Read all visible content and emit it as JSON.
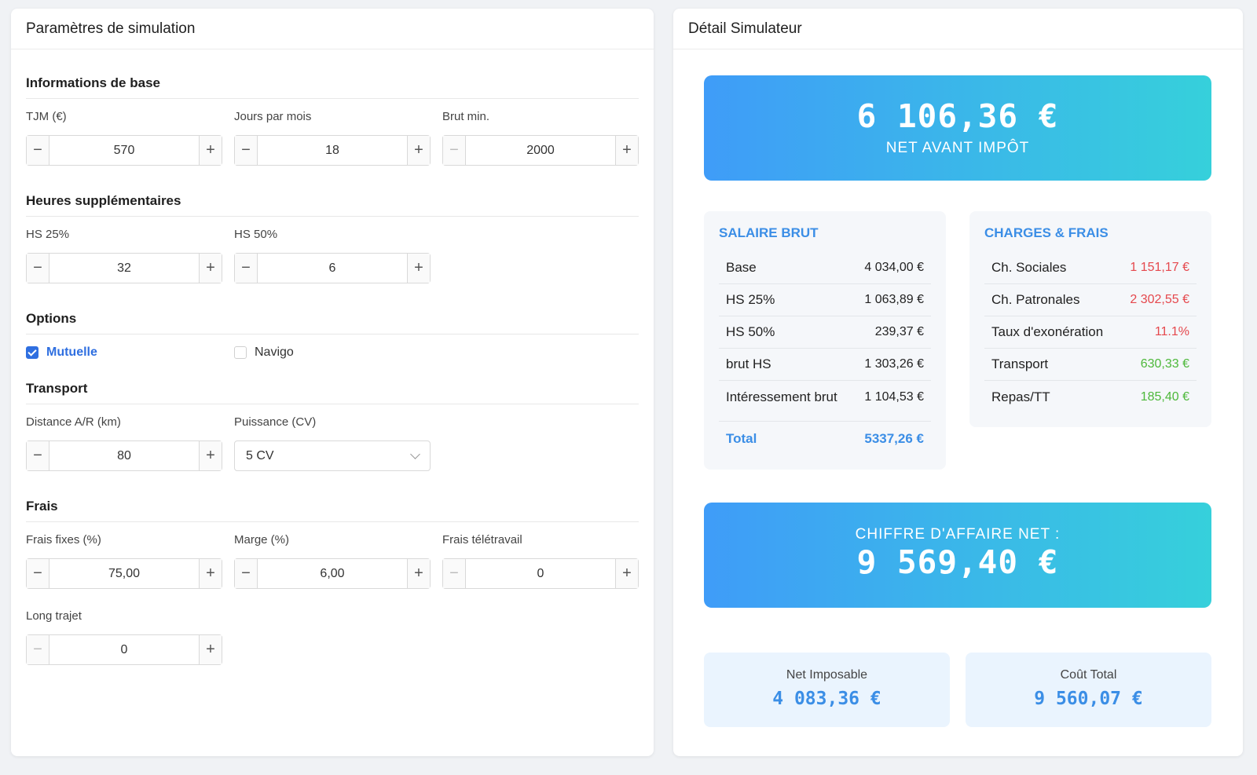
{
  "left": {
    "title": "Paramètres de simulation",
    "base": {
      "title": "Informations de base",
      "fields": [
        {
          "label": "TJM (€)",
          "value": "570"
        },
        {
          "label": "Jours par mois",
          "value": "18"
        },
        {
          "label": "Brut min.",
          "value": "2000"
        }
      ]
    },
    "hs": {
      "title": "Heures supplémentaires",
      "fields": [
        {
          "label": "HS 25%",
          "value": "32"
        },
        {
          "label": "HS 50%",
          "value": "6"
        }
      ]
    },
    "options": {
      "title": "Options",
      "items": [
        {
          "label": "Mutuelle",
          "checked": true
        },
        {
          "label": "Navigo",
          "checked": false
        }
      ]
    },
    "transport": {
      "title": "Transport",
      "distance_label": "Distance A/R (km)",
      "distance_value": "80",
      "puissance_label": "Puissance (CV)",
      "puissance_value": "5 CV"
    },
    "frais": {
      "title": "Frais",
      "fields": [
        {
          "label": "Frais fixes (%)",
          "value": "75,00"
        },
        {
          "label": "Marge (%)",
          "value": "6,00"
        },
        {
          "label": "Frais télétravail",
          "value": "0"
        }
      ],
      "long_label": "Long trajet",
      "long_value": "0"
    }
  },
  "right": {
    "title": "Détail Simulateur",
    "net_value": "6 106,36 €",
    "net_label": "NET AVANT IMPÔT",
    "salaire": {
      "title": "SALAIRE BRUT",
      "rows": [
        {
          "label": "Base",
          "value": "4 034,00 €"
        },
        {
          "label": "HS 25%",
          "value": "1 063,89 €"
        },
        {
          "label": "HS 50%",
          "value": "239,37 €"
        },
        {
          "label": "brut HS",
          "value": "1 303,26 €"
        },
        {
          "label": "Intéressement brut",
          "value": "1 104,53 €"
        }
      ],
      "total_label": "Total",
      "total_value": "5337,26 €"
    },
    "charges": {
      "title": "CHARGES & FRAIS",
      "rows": [
        {
          "label": "Ch. Sociales",
          "value": "1 151,17 €",
          "color": "#e5484d"
        },
        {
          "label": "Ch. Patronales",
          "value": "2 302,55 €",
          "color": "#e5484d"
        },
        {
          "label": "Taux d'exonération",
          "value": "11.1%",
          "color": "#e5484d"
        },
        {
          "label": "Transport",
          "value": "630,33 €",
          "color": "#4db83a"
        },
        {
          "label": "Repas/TT",
          "value": "185,40 €",
          "color": "#4db83a"
        }
      ]
    },
    "ca_label": "CHIFFRE D'AFFAIRE NET :",
    "ca_value": "9 569,40 €",
    "net_imposable_label": "Net Imposable",
    "net_imposable_value": "4 083,36 €",
    "cout_total_label": "Coût Total",
    "cout_total_value": "9 560,07 €"
  }
}
